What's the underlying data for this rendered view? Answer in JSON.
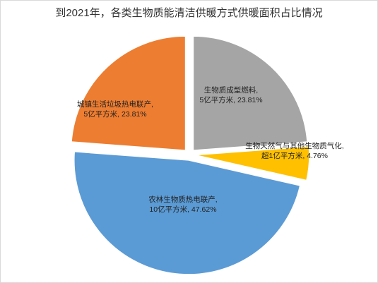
{
  "chart_data": {
    "type": "pie",
    "title": "到2021年，各类生物质能清洁供暖方式供暖面积占比情况",
    "legend": "none",
    "slices": [
      {
        "name": "生物质成型燃料",
        "value_label": "5亿平方米",
        "percent": 23.81,
        "pct_label": "23.81%",
        "color": "#a5a5a5"
      },
      {
        "name": "生物天然气与其他生物质气化",
        "value_label": "超1亿平方米",
        "percent": 4.76,
        "pct_label": "4.76%",
        "color": "#ffc000"
      },
      {
        "name": "农林生物质热电联产",
        "value_label": "10亿平方米",
        "percent": 47.62,
        "pct_label": "47.62%",
        "color": "#5b9bd5"
      },
      {
        "name": "城镇生活垃圾热电联产",
        "value_label": "5亿平方米",
        "percent": 23.81,
        "pct_label": "23.81%",
        "color": "#ed7d31"
      }
    ]
  }
}
